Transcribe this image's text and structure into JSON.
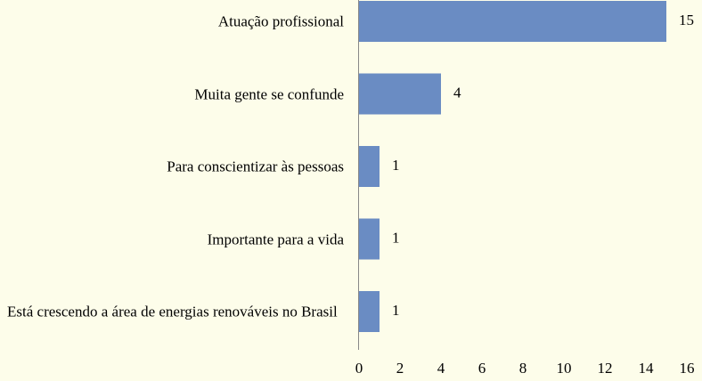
{
  "chart_data": {
    "type": "bar",
    "orientation": "horizontal",
    "categories": [
      "Atuação profissional",
      "Muita gente se confunde",
      "Para conscientizar às pessoas",
      "Importante para a vida",
      "Está crescendo a área de energias renováveis no Brasil"
    ],
    "values": [
      15,
      4,
      1,
      1,
      1
    ],
    "color": "#6a8cc3",
    "xlim": [
      0,
      16
    ],
    "xticks": [
      0,
      2,
      4,
      6,
      8,
      10,
      12,
      14,
      16
    ],
    "grid": false
  }
}
